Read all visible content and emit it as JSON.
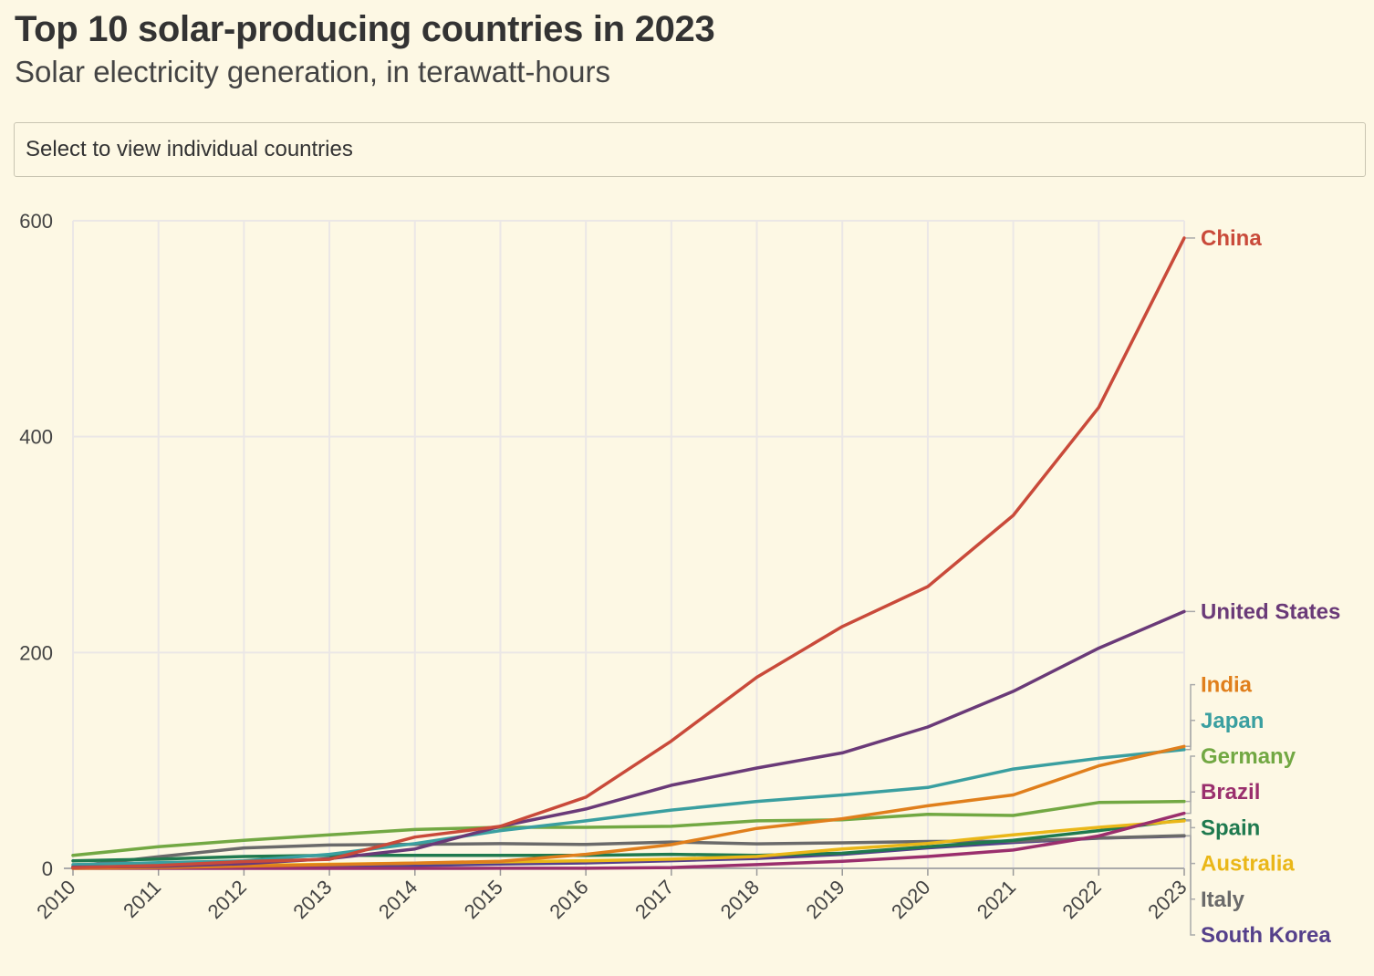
{
  "header": {
    "title": "Top 10 solar-producing countries in 2023",
    "subtitle": "Solar electricity generation, in terawatt-hours"
  },
  "selector": {
    "label": "Select to view individual countries"
  },
  "chart_data": {
    "type": "line",
    "title": "Top 10 solar-producing countries in 2023",
    "subtitle": "Solar electricity generation, in terawatt-hours",
    "xlabel": "",
    "ylabel": "",
    "x": [
      "2010",
      "2011",
      "2012",
      "2013",
      "2014",
      "2015",
      "2016",
      "2017",
      "2018",
      "2019",
      "2020",
      "2021",
      "2022",
      "2023"
    ],
    "ylim": [
      0,
      600
    ],
    "yticks": [
      0,
      200,
      400,
      600
    ],
    "grid": true,
    "legend": "direct-labels-right",
    "series": [
      {
        "name": "China",
        "color": "#c94a3a",
        "values": [
          0.7,
          2.6,
          6.3,
          8.4,
          29,
          39,
          66,
          118,
          177,
          224,
          261,
          327,
          427,
          584
        ]
      },
      {
        "name": "United States",
        "color": "#6a3a78",
        "values": [
          1.2,
          1.8,
          4.3,
          9.0,
          18,
          39,
          55,
          77,
          93,
          107,
          131,
          164,
          204,
          238
        ]
      },
      {
        "name": "India",
        "color": "#e07f1c",
        "values": [
          0.1,
          0.8,
          2.1,
          3.4,
          4.9,
          6.6,
          13,
          22,
          37,
          46,
          58,
          68,
          95,
          113
        ]
      },
      {
        "name": "Japan",
        "color": "#3a9fa0",
        "values": [
          3.5,
          5.2,
          6.9,
          13,
          23,
          35,
          44,
          54,
          62,
          68,
          75,
          92,
          102,
          110
        ]
      },
      {
        "name": "Germany",
        "color": "#72a843",
        "values": [
          12,
          20,
          26,
          31,
          36,
          38,
          38,
          39,
          44,
          45,
          50,
          49,
          61,
          62
        ]
      },
      {
        "name": "Brazil",
        "color": "#9a2f6d",
        "values": [
          0,
          0,
          0,
          0,
          0,
          0.1,
          0.1,
          0.8,
          3.5,
          6.6,
          11,
          17,
          30,
          51
        ]
      },
      {
        "name": "Australia",
        "color": "#eab718",
        "values": [
          0.6,
          1.6,
          2.8,
          3.8,
          4.9,
          6.0,
          7.0,
          8.5,
          11,
          18,
          23,
          31,
          38,
          44
        ]
      },
      {
        "name": "Spain",
        "color": "#1f7a4f",
        "values": [
          7,
          8.5,
          11,
          12,
          12,
          12,
          12,
          13,
          12,
          14,
          20,
          26,
          35,
          45
        ]
      },
      {
        "name": "Italy",
        "color": "#6a6a6a",
        "values": [
          1.9,
          10.8,
          18.9,
          21.6,
          22.3,
          22.9,
          22.1,
          24.4,
          22.7,
          23.7,
          24.9,
          25.1,
          28.1,
          30.3
        ]
      },
      {
        "name": "South Korea",
        "color": "#55408b",
        "values": [
          0.8,
          0.9,
          1.1,
          1.6,
          2.6,
          4.0,
          5.1,
          7.1,
          9.2,
          13,
          19,
          24,
          28,
          30
        ]
      }
    ]
  }
}
